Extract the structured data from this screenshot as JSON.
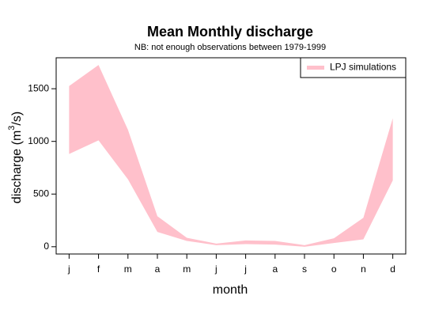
{
  "chart_data": {
    "type": "band",
    "title": "Mean Monthly discharge",
    "subtitle": "NB: not enough observations between 1979-1999",
    "xlabel": "month",
    "ylabel": [
      "discharge (m",
      "3",
      "/s)"
    ],
    "categories": [
      "j",
      "f",
      "m",
      "a",
      "m",
      "j",
      "j",
      "a",
      "s",
      "o",
      "n",
      "d"
    ],
    "series": [
      {
        "name": "LPJ simulations",
        "color": "#ffc0cb",
        "upper": [
          1525,
          1725,
          1110,
          290,
          85,
          30,
          60,
          55,
          15,
          80,
          275,
          1220
        ],
        "lower": [
          880,
          1010,
          640,
          140,
          55,
          15,
          25,
          20,
          0,
          35,
          70,
          630
        ]
      }
    ],
    "ylim": [
      -69,
      1794
    ],
    "yticks": [
      0,
      500,
      1000,
      1500
    ],
    "legend": "topright"
  }
}
